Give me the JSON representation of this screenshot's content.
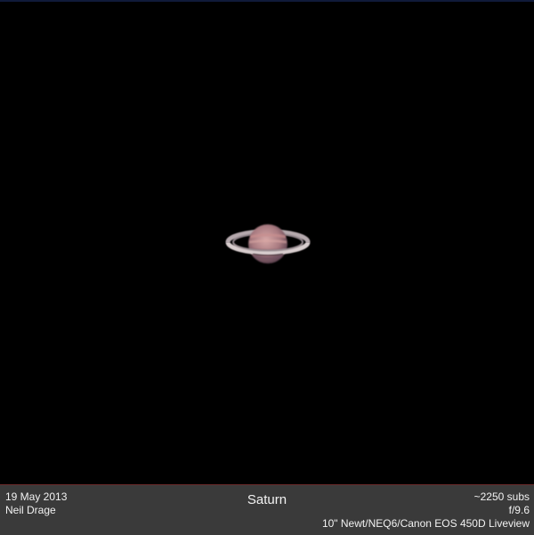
{
  "image": {
    "subject": "Saturn",
    "colors": {
      "background": "#000000",
      "caption_bar": "#3a3a3a",
      "caption_text": "#f2f2f2",
      "planet_body": "#b88a8e",
      "ring": "#cfc4c6"
    }
  },
  "caption": {
    "date": "19 May 2013",
    "author": "Neil Drage",
    "title": "Saturn",
    "subs": "~2250 subs",
    "focal_ratio": "f/9.6",
    "equipment": "10\" Newt/NEQ6/Canon EOS 450D Liveview"
  }
}
